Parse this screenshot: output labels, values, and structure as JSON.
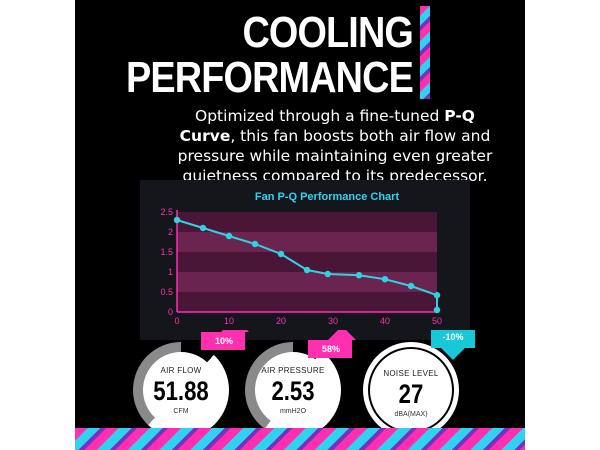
{
  "header": {
    "title_line1": "COOLING",
    "title_line2": "PERFORMANCE"
  },
  "description": {
    "part1": "Optimized through a fine-tuned ",
    "bold": "P-Q Curve",
    "part2": ", this fan boosts both air flow and pressure while maintaining even greater quietness compared to its predecessor."
  },
  "chart_data": {
    "type": "line",
    "title": "Fan P-Q Performance Chart",
    "x": [
      0,
      5,
      10,
      15,
      20,
      25,
      29,
      35,
      40,
      45,
      50,
      55
    ],
    "values": [
      2.3,
      2.1,
      1.9,
      1.7,
      1.45,
      1.05,
      0.95,
      0.92,
      0.82,
      0.65,
      0.42,
      0.05
    ],
    "xlim": [
      0,
      50
    ],
    "ylim": [
      0,
      2.5
    ],
    "xticks": [
      "0",
      "10",
      "20",
      "30",
      "40",
      "50"
    ],
    "yticks": [
      "0",
      "0.5",
      "1",
      "1.5",
      "2",
      "2.5"
    ],
    "xlabel": "",
    "ylabel": "",
    "colors": {
      "line": "#2fd3e0",
      "marker": "#2fd3e0",
      "band_dark": "#4a1638",
      "band_light": "#6b2350",
      "title": "#2fd3f0",
      "axis": "#ff2fb0"
    }
  },
  "stats": [
    {
      "label": "AIR FLOW",
      "value": "51.88",
      "unit": "CFM",
      "badge": "10%",
      "badge_color": "#ff2fb0"
    },
    {
      "label": "AIR PRESSURE",
      "value": "2.53",
      "unit": "mmH2O",
      "badge": "58%",
      "badge_color": "#ff2fb0"
    },
    {
      "label": "NOISE LEVEL",
      "value": "27",
      "unit": "dBA(MAX)",
      "badge": "-10%",
      "badge_color": "#19c8d8"
    }
  ]
}
